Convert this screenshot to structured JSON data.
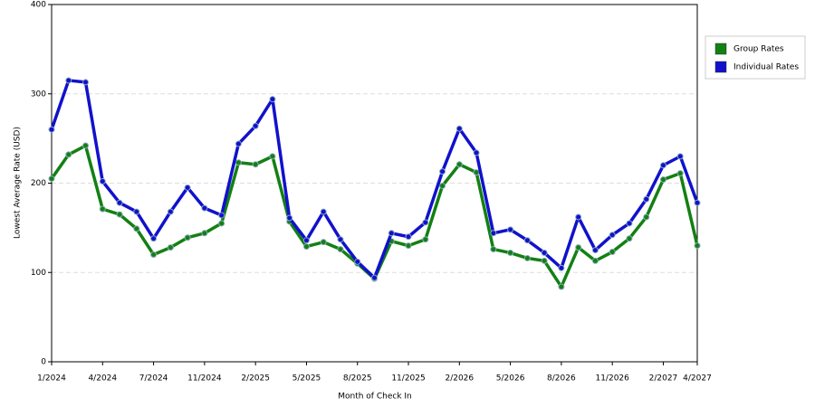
{
  "chart_data": {
    "type": "line",
    "x_label": "Month of Check In",
    "y_label": "Lowest Average Rate (USD)",
    "categories": [
      "1/2024",
      null,
      null,
      "4/2024",
      null,
      null,
      "7/2024",
      null,
      null,
      "11/2024",
      null,
      null,
      "2/2025",
      null,
      null,
      "5/2025",
      null,
      null,
      "8/2025",
      null,
      null,
      "11/2025",
      null,
      null,
      "2/2026",
      null,
      null,
      "5/2026",
      null,
      null,
      "8/2026",
      null,
      null,
      "11/2026",
      null,
      null,
      "2/2027",
      null,
      "4/2027"
    ],
    "series": [
      {
        "name": "Group Rates",
        "color": "#138013",
        "values": [
          205,
          232,
          242,
          171,
          165,
          149,
          120,
          128,
          139,
          144,
          155,
          223,
          221,
          230,
          157,
          129,
          134,
          126,
          110,
          93,
          135,
          130,
          137,
          197,
          221,
          212,
          126,
          122,
          116,
          113,
          84,
          128,
          113,
          123,
          138,
          162,
          204,
          211,
          130
        ]
      },
      {
        "name": "Individual Rates",
        "color": "#1111cc",
        "values": [
          260,
          315,
          313,
          202,
          178,
          168,
          138,
          168,
          195,
          172,
          164,
          244,
          264,
          294,
          161,
          136,
          168,
          137,
          112,
          94,
          144,
          140,
          156,
          213,
          261,
          234,
          144,
          148,
          136,
          122,
          105,
          162,
          125,
          142,
          155,
          182,
          220,
          230,
          178
        ]
      }
    ],
    "ylim": [
      0,
      400
    ],
    "yticks": [
      0,
      100,
      200,
      300,
      400
    ],
    "grid": true,
    "legend": "right"
  }
}
